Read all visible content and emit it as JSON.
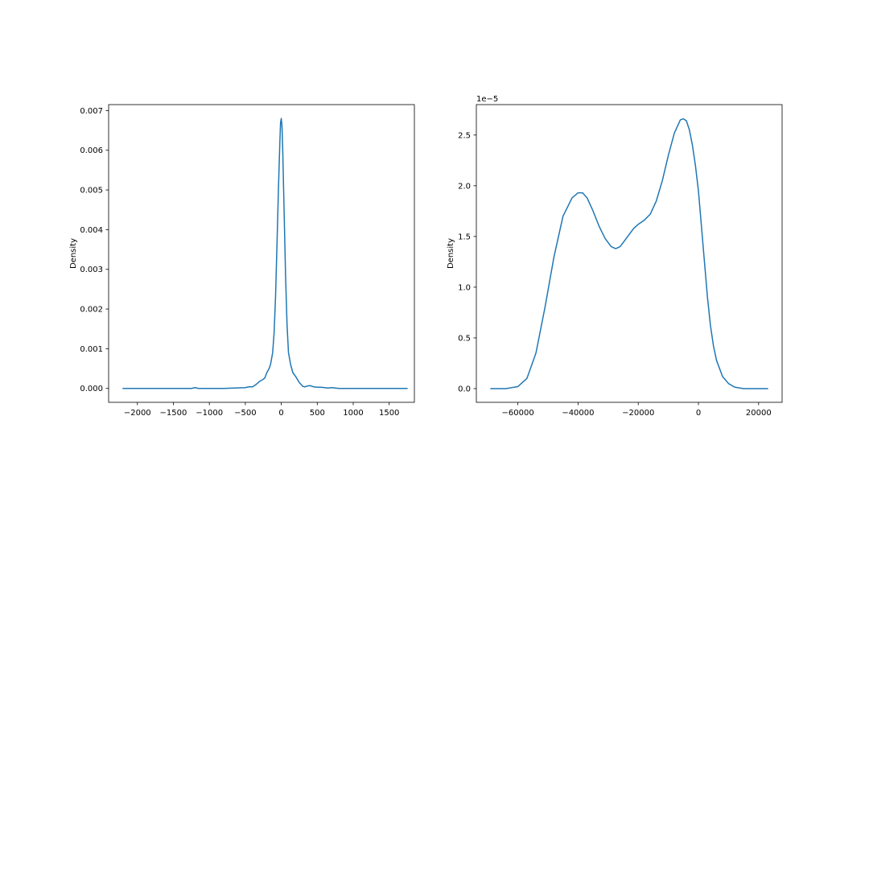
{
  "colors": {
    "line": "#1f77b4",
    "axes": "#000000",
    "background": "#ffffff"
  },
  "chart_data": [
    {
      "type": "line",
      "title": "",
      "xlabel": "",
      "ylabel": "Density",
      "offset_label": "",
      "grid": false,
      "xlim": [
        -2400,
        1850
      ],
      "ylim": [
        -0.00035,
        0.00715
      ],
      "xticks": [
        {
          "value": -2000,
          "label": "−2000"
        },
        {
          "value": -1500,
          "label": "−1500"
        },
        {
          "value": -1000,
          "label": "−1000"
        },
        {
          "value": -500,
          "label": "−500"
        },
        {
          "value": 0,
          "label": "0"
        },
        {
          "value": 500,
          "label": "500"
        },
        {
          "value": 1000,
          "label": "1000"
        },
        {
          "value": 1500,
          "label": "1500"
        }
      ],
      "yticks": [
        {
          "value": 0.0,
          "label": "0.000"
        },
        {
          "value": 0.001,
          "label": "0.001"
        },
        {
          "value": 0.002,
          "label": "0.002"
        },
        {
          "value": 0.003,
          "label": "0.003"
        },
        {
          "value": 0.004,
          "label": "0.004"
        },
        {
          "value": 0.005,
          "label": "0.005"
        },
        {
          "value": 0.006,
          "label": "0.006"
        },
        {
          "value": 0.007,
          "label": "0.007"
        }
      ],
      "series": [
        {
          "x": [
            -2200,
            -1500,
            -1250,
            -1200,
            -1150,
            -800,
            -500,
            -450,
            -400,
            -350,
            -300,
            -260,
            -230,
            -200,
            -170,
            -150,
            -120,
            -100,
            -80,
            -60,
            -40,
            -20,
            -10,
            0,
            10,
            20,
            40,
            60,
            80,
            100,
            130,
            160,
            200,
            250,
            300,
            330,
            360,
            400,
            450,
            500,
            550,
            600,
            650,
            700,
            750,
            800,
            900,
            1000,
            1200,
            1500,
            1750
          ],
          "y": [
            0.0,
            0.0,
            0.0,
            2e-05,
            0.0,
            0.0,
            2e-05,
            4e-05,
            4e-05,
            0.0001,
            0.00018,
            0.00022,
            0.00026,
            0.0004,
            0.0005,
            0.0006,
            0.0009,
            0.0014,
            0.0023,
            0.0036,
            0.005,
            0.0062,
            0.0067,
            0.0068,
            0.0066,
            0.006,
            0.0044,
            0.0028,
            0.0016,
            0.0009,
            0.0006,
            0.0004,
            0.0003,
            0.00015,
            5e-05,
            4e-05,
            6e-05,
            7e-05,
            4e-05,
            3e-05,
            3e-05,
            2e-05,
            1e-05,
            2e-05,
            1e-05,
            0.0,
            0.0,
            0.0,
            0.0,
            0.0,
            0.0
          ]
        }
      ]
    },
    {
      "type": "line",
      "title": "",
      "xlabel": "",
      "ylabel": "Density",
      "offset_label": "1e−5",
      "grid": false,
      "xlim": [
        -73800,
        27800
      ],
      "ylim": [
        -0.135,
        2.8
      ],
      "xticks": [
        {
          "value": -60000,
          "label": "−60000"
        },
        {
          "value": -40000,
          "label": "−40000"
        },
        {
          "value": -20000,
          "label": "−20000"
        },
        {
          "value": 0,
          "label": "0"
        },
        {
          "value": 20000,
          "label": "20000"
        }
      ],
      "yticks": [
        {
          "value": 0.0,
          "label": "0.0"
        },
        {
          "value": 0.5,
          "label": "0.5"
        },
        {
          "value": 1.0,
          "label": "1.0"
        },
        {
          "value": 1.5,
          "label": "1.5"
        },
        {
          "value": 2.0,
          "label": "2.0"
        },
        {
          "value": 2.5,
          "label": "2.5"
        }
      ],
      "series": [
        {
          "x": [
            -69000,
            -64000,
            -60000,
            -57000,
            -54000,
            -51000,
            -48000,
            -45000,
            -42000,
            -40000,
            -38500,
            -37000,
            -35000,
            -33000,
            -31000,
            -29000,
            -27500,
            -26000,
            -24500,
            -23000,
            -21500,
            -20000,
            -18000,
            -16000,
            -14000,
            -12000,
            -10000,
            -8000,
            -6000,
            -5000,
            -4000,
            -3000,
            -2000,
            -1000,
            0,
            1000,
            2000,
            3000,
            4000,
            5000,
            6000,
            8000,
            10000,
            12000,
            15000,
            18000,
            21000,
            23000
          ],
          "y": [
            0.0,
            0.0,
            0.02,
            0.1,
            0.35,
            0.8,
            1.3,
            1.7,
            1.88,
            1.93,
            1.93,
            1.88,
            1.75,
            1.6,
            1.48,
            1.4,
            1.38,
            1.4,
            1.46,
            1.52,
            1.58,
            1.62,
            1.66,
            1.72,
            1.85,
            2.05,
            2.3,
            2.52,
            2.65,
            2.66,
            2.64,
            2.55,
            2.4,
            2.2,
            1.95,
            1.6,
            1.25,
            0.9,
            0.62,
            0.42,
            0.28,
            0.12,
            0.05,
            0.015,
            0.0,
            0.0,
            0.0,
            0.0
          ]
        }
      ]
    }
  ]
}
